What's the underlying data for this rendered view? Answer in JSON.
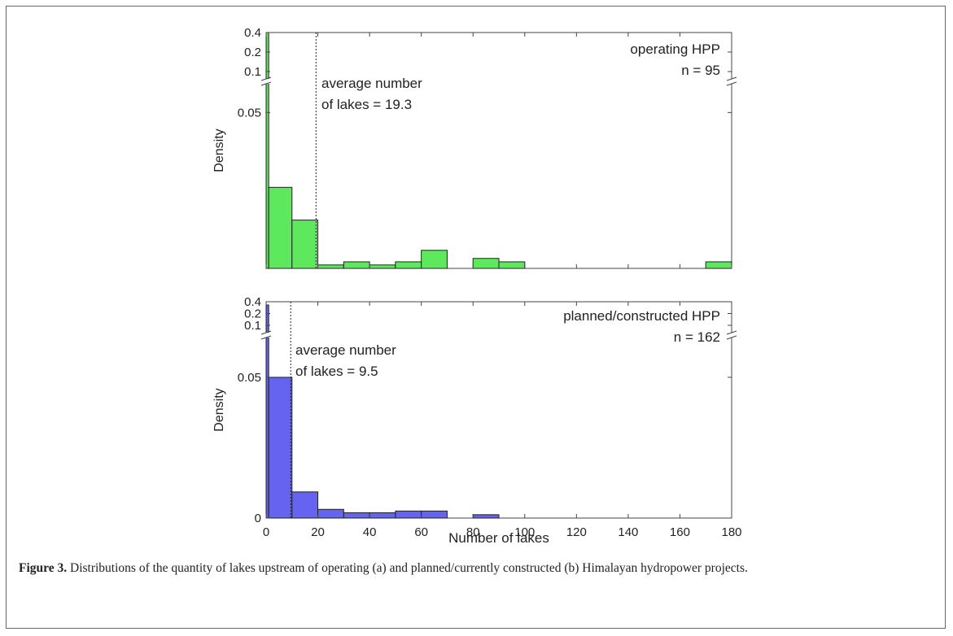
{
  "chart_data": [
    {
      "type": "bar",
      "panel": "a",
      "annotation_title": "operating HPP",
      "annotation_n": "n = 95",
      "mean_label_line1": "average number",
      "mean_label_line2": "of lakes = 19.3",
      "mean": 19.3,
      "ylabel": "Density",
      "xlabel": "",
      "xlim": [
        0,
        180
      ],
      "y_ticks": [
        "0.05",
        "0.1",
        "0.2",
        "0.4"
      ],
      "broken_axis": true,
      "bin_width": 10,
      "bins": [
        {
          "x0": 0,
          "x1": 1,
          "density": 0.4
        },
        {
          "x0": 1,
          "x1": 10,
          "density": 0.026
        },
        {
          "x0": 10,
          "x1": 20,
          "density": 0.0155
        },
        {
          "x0": 20,
          "x1": 30,
          "density": 0.0011
        },
        {
          "x0": 30,
          "x1": 40,
          "density": 0.0021
        },
        {
          "x0": 40,
          "x1": 50,
          "density": 0.0011
        },
        {
          "x0": 50,
          "x1": 60,
          "density": 0.0021
        },
        {
          "x0": 60,
          "x1": 70,
          "density": 0.0058
        },
        {
          "x0": 70,
          "x1": 80,
          "density": 0
        },
        {
          "x0": 80,
          "x1": 90,
          "density": 0.0032
        },
        {
          "x0": 90,
          "x1": 100,
          "density": 0.0021
        },
        {
          "x0": 170,
          "x1": 180,
          "density": 0.0021
        }
      ],
      "color": "#5ee85e"
    },
    {
      "type": "bar",
      "panel": "b",
      "annotation_title": "planned/constructed HPP",
      "annotation_n": "n = 162",
      "mean_label_line1": "average number",
      "mean_label_line2": "of lakes = 9.5",
      "mean": 9.5,
      "ylabel": "Density",
      "xlabel": "Number of lakes",
      "xlim": [
        0,
        180
      ],
      "x_ticks": [
        "0",
        "20",
        "40",
        "60",
        "80",
        "100",
        "120",
        "140",
        "160",
        "180"
      ],
      "y_ticks": [
        "0",
        "0.05",
        "0.1",
        "0.2",
        "0.4"
      ],
      "broken_axis": true,
      "bin_width": 10,
      "bins": [
        {
          "x0": 0,
          "x1": 1,
          "density": 0.33
        },
        {
          "x0": 1,
          "x1": 10,
          "density": 0.05
        },
        {
          "x0": 10,
          "x1": 20,
          "density": 0.0093
        },
        {
          "x0": 20,
          "x1": 30,
          "density": 0.0031
        },
        {
          "x0": 30,
          "x1": 40,
          "density": 0.0019
        },
        {
          "x0": 40,
          "x1": 50,
          "density": 0.0019
        },
        {
          "x0": 50,
          "x1": 60,
          "density": 0.0025
        },
        {
          "x0": 60,
          "x1": 70,
          "density": 0.0025
        },
        {
          "x0": 70,
          "x1": 80,
          "density": 0
        },
        {
          "x0": 80,
          "x1": 90,
          "density": 0.0012
        }
      ],
      "color": "#6464f0"
    }
  ],
  "caption": {
    "label": "Figure 3.",
    "text": "Distributions of the quantity of lakes upstream of operating (a) and planned/currently constructed (b) Himalayan hydropower projects."
  }
}
